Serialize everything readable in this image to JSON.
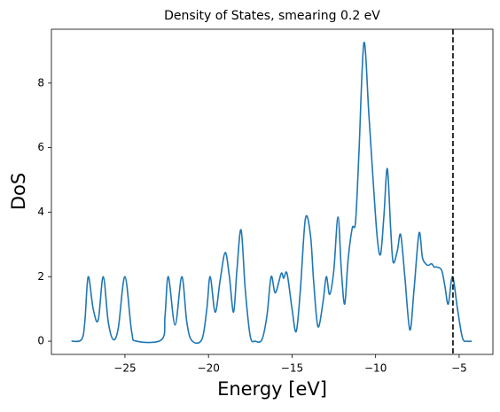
{
  "chart_data": {
    "type": "line",
    "title": "Density of States, smearing 0.2 eV",
    "xlabel": "Energy [eV]",
    "ylabel": "DoS",
    "x": [
      -28.2,
      -27.6,
      -27.4,
      -27.2,
      -26.9,
      -26.6,
      -26.3,
      -26.0,
      -25.7,
      -25.4,
      -25.0,
      -24.6,
      -24.3,
      -22.8,
      -22.6,
      -22.4,
      -22.0,
      -21.6,
      -21.3,
      -21.0,
      -20.4,
      -20.1,
      -19.9,
      -19.6,
      -19.3,
      -19.0,
      -18.75,
      -18.5,
      -18.3,
      -18.05,
      -17.8,
      -17.5,
      -17.2,
      -16.8,
      -16.5,
      -16.25,
      -16.0,
      -15.65,
      -15.5,
      -15.3,
      -15.0,
      -14.75,
      -14.5,
      -14.2,
      -13.9,
      -13.7,
      -13.45,
      -13.15,
      -12.95,
      -12.75,
      -12.5,
      -12.25,
      -12.05,
      -11.85,
      -11.65,
      -11.4,
      -11.2,
      -11.0,
      -10.7,
      -10.4,
      -10.15,
      -9.9,
      -9.7,
      -9.5,
      -9.3,
      -9.1,
      -8.95,
      -8.7,
      -8.5,
      -8.25,
      -7.95,
      -7.7,
      -7.4,
      -7.2,
      -7.0,
      -6.85,
      -6.65,
      -6.5,
      -6.35,
      -6.05,
      -5.85,
      -5.65,
      -5.4,
      -5.1,
      -4.8,
      -4.5,
      -4.25
    ],
    "series": [
      {
        "color": "#1f77b4",
        "values": [
          0,
          0.05,
          0.6,
          2.0,
          1.0,
          0.65,
          2.0,
          0.6,
          0.05,
          0.4,
          2.0,
          0.3,
          0,
          0.05,
          0.8,
          2.0,
          0.5,
          2.0,
          0.6,
          0.02,
          0.05,
          1.0,
          2.0,
          0.9,
          1.9,
          2.75,
          2.0,
          0.9,
          2.2,
          3.45,
          1.6,
          0.15,
          0,
          0.05,
          0.8,
          2.0,
          1.5,
          2.1,
          1.95,
          2.1,
          1.0,
          0.3,
          1.6,
          3.8,
          3.3,
          1.8,
          0.45,
          1.2,
          2.0,
          1.45,
          2.2,
          3.85,
          2.2,
          1.15,
          2.5,
          3.5,
          3.7,
          5.8,
          9.25,
          7.0,
          5.0,
          3.2,
          2.7,
          3.9,
          5.35,
          3.5,
          2.45,
          2.8,
          3.3,
          2.0,
          0.35,
          1.6,
          3.35,
          2.6,
          2.4,
          2.35,
          2.4,
          2.3,
          2.3,
          2.2,
          1.7,
          1.15,
          2.0,
          1.0,
          0.1,
          0,
          0
        ]
      }
    ],
    "fermi_level": -5.37,
    "fermi_color": "#000000",
    "xlim": [
      -29.4,
      -2.98
    ],
    "ylim": [
      -0.41,
      9.67
    ],
    "xticks": [
      {
        "value": -25,
        "label": "−25"
      },
      {
        "value": -20,
        "label": "−20"
      },
      {
        "value": -15,
        "label": "−15"
      },
      {
        "value": -10,
        "label": "−10"
      },
      {
        "value": -5,
        "label": "−5"
      }
    ],
    "yticks": [
      0,
      2,
      4,
      6,
      8
    ]
  }
}
